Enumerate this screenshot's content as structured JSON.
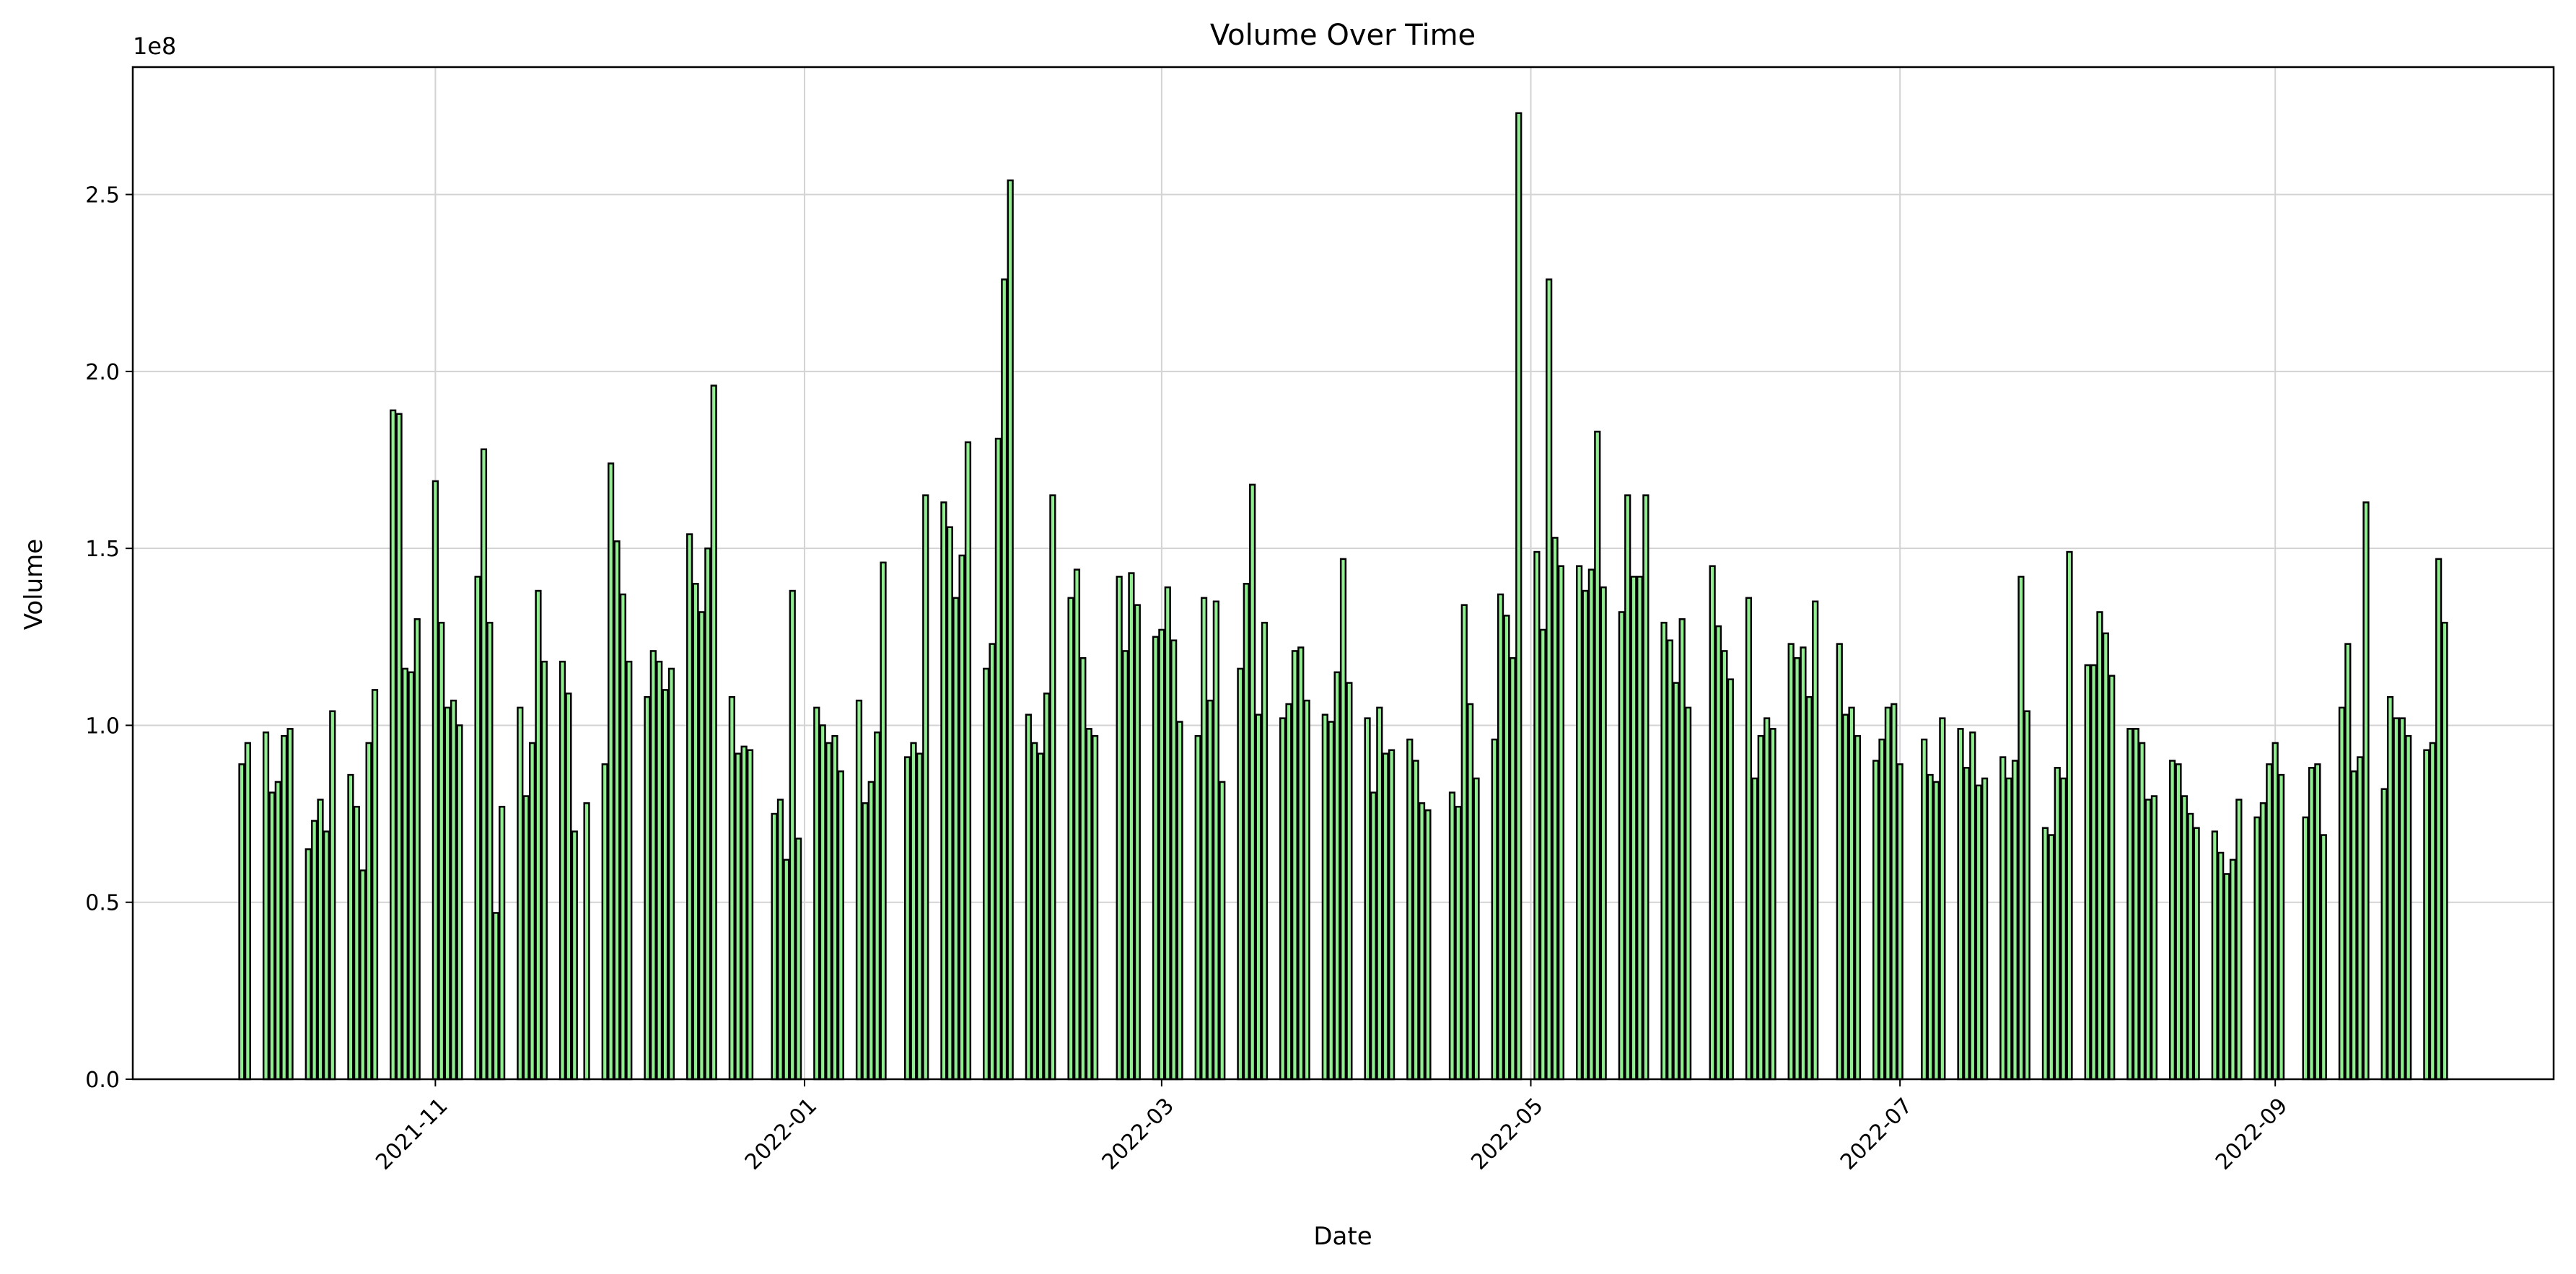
{
  "chart_data": {
    "type": "bar",
    "title": "Volume Over Time",
    "x_label": "Date",
    "y_label": "Volume",
    "y_offset_label": "1e8",
    "color": "#90ee90",
    "edge_color": "#000000",
    "grid": true,
    "xlim": [
      "2021-09-12",
      "2022-10-17"
    ],
    "xticks": [
      {
        "value": "2021-11-01",
        "label": "2021-11"
      },
      {
        "value": "2022-01-01",
        "label": "2022-01"
      },
      {
        "value": "2022-03-01",
        "label": "2022-03"
      },
      {
        "value": "2022-05-01",
        "label": "2022-05"
      },
      {
        "value": "2022-07-01",
        "label": "2022-07"
      },
      {
        "value": "2022-09-01",
        "label": "2022-09"
      }
    ],
    "ylim": [
      0,
      2.86
    ],
    "yticks": [
      {
        "value": 0,
        "label": "0.0"
      },
      0.5,
      {
        "value": 1,
        "label": "1.0"
      },
      1.5,
      {
        "value": 2,
        "label": "2.0"
      },
      2.5
    ],
    "x": [
      "2021-09-30",
      "2021-10-01",
      "2021-10-04",
      "2021-10-05",
      "2021-10-06",
      "2021-10-07",
      "2021-10-08",
      "2021-10-11",
      "2021-10-12",
      "2021-10-13",
      "2021-10-14",
      "2021-10-15",
      "2021-10-18",
      "2021-10-19",
      "2021-10-20",
      "2021-10-21",
      "2021-10-22",
      "2021-10-25",
      "2021-10-26",
      "2021-10-27",
      "2021-10-28",
      "2021-10-29",
      "2021-11-01",
      "2021-11-02",
      "2021-11-03",
      "2021-11-04",
      "2021-11-05",
      "2021-11-08",
      "2021-11-09",
      "2021-11-10",
      "2021-11-11",
      "2021-11-12",
      "2021-11-15",
      "2021-11-16",
      "2021-11-17",
      "2021-11-18",
      "2021-11-19",
      "2021-11-22",
      "2021-11-23",
      "2021-11-24",
      "2021-11-26",
      "2021-11-29",
      "2021-11-30",
      "2021-12-01",
      "2021-12-02",
      "2021-12-03",
      "2021-12-06",
      "2021-12-07",
      "2021-12-08",
      "2021-12-09",
      "2021-12-10",
      "2021-12-13",
      "2021-12-14",
      "2021-12-15",
      "2021-12-16",
      "2021-12-17",
      "2021-12-20",
      "2021-12-21",
      "2021-12-22",
      "2021-12-23",
      "2021-12-27",
      "2021-12-28",
      "2021-12-29",
      "2021-12-30",
      "2021-12-31",
      "2022-01-03",
      "2022-01-04",
      "2022-01-05",
      "2022-01-06",
      "2022-01-07",
      "2022-01-10",
      "2022-01-11",
      "2022-01-12",
      "2022-01-13",
      "2022-01-14",
      "2022-01-18",
      "2022-01-19",
      "2022-01-20",
      "2022-01-21",
      "2022-01-24",
      "2022-01-25",
      "2022-01-26",
      "2022-01-27",
      "2022-01-28",
      "2022-01-31",
      "2022-02-01",
      "2022-02-02",
      "2022-02-03",
      "2022-02-04",
      "2022-02-07",
      "2022-02-08",
      "2022-02-09",
      "2022-02-10",
      "2022-02-11",
      "2022-02-14",
      "2022-02-15",
      "2022-02-16",
      "2022-02-17",
      "2022-02-18",
      "2022-02-22",
      "2022-02-23",
      "2022-02-24",
      "2022-02-25",
      "2022-02-28",
      "2022-03-01",
      "2022-03-02",
      "2022-03-03",
      "2022-03-04",
      "2022-03-07",
      "2022-03-08",
      "2022-03-09",
      "2022-03-10",
      "2022-03-11",
      "2022-03-14",
      "2022-03-15",
      "2022-03-16",
      "2022-03-17",
      "2022-03-18",
      "2022-03-21",
      "2022-03-22",
      "2022-03-23",
      "2022-03-24",
      "2022-03-25",
      "2022-03-28",
      "2022-03-29",
      "2022-03-30",
      "2022-03-31",
      "2022-04-01",
      "2022-04-04",
      "2022-04-05",
      "2022-04-06",
      "2022-04-07",
      "2022-04-08",
      "2022-04-11",
      "2022-04-12",
      "2022-04-13",
      "2022-04-14",
      "2022-04-18",
      "2022-04-19",
      "2022-04-20",
      "2022-04-21",
      "2022-04-22",
      "2022-04-25",
      "2022-04-26",
      "2022-04-27",
      "2022-04-28",
      "2022-04-29",
      "2022-05-02",
      "2022-05-03",
      "2022-05-04",
      "2022-05-05",
      "2022-05-06",
      "2022-05-09",
      "2022-05-10",
      "2022-05-11",
      "2022-05-12",
      "2022-05-13",
      "2022-05-16",
      "2022-05-17",
      "2022-05-18",
      "2022-05-19",
      "2022-05-20",
      "2022-05-23",
      "2022-05-24",
      "2022-05-25",
      "2022-05-26",
      "2022-05-27",
      "2022-05-31",
      "2022-06-01",
      "2022-06-02",
      "2022-06-03",
      "2022-06-06",
      "2022-06-07",
      "2022-06-08",
      "2022-06-09",
      "2022-06-10",
      "2022-06-13",
      "2022-06-14",
      "2022-06-15",
      "2022-06-16",
      "2022-06-17",
      "2022-06-21",
      "2022-06-22",
      "2022-06-23",
      "2022-06-24",
      "2022-06-27",
      "2022-06-28",
      "2022-06-29",
      "2022-06-30",
      "2022-07-01",
      "2022-07-05",
      "2022-07-06",
      "2022-07-07",
      "2022-07-08",
      "2022-07-11",
      "2022-07-12",
      "2022-07-13",
      "2022-07-14",
      "2022-07-15",
      "2022-07-18",
      "2022-07-19",
      "2022-07-20",
      "2022-07-21",
      "2022-07-22",
      "2022-07-25",
      "2022-07-26",
      "2022-07-27",
      "2022-07-28",
      "2022-07-29",
      "2022-08-01",
      "2022-08-02",
      "2022-08-03",
      "2022-08-04",
      "2022-08-05",
      "2022-08-08",
      "2022-08-09",
      "2022-08-10",
      "2022-08-11",
      "2022-08-12",
      "2022-08-15",
      "2022-08-16",
      "2022-08-17",
      "2022-08-18",
      "2022-08-19",
      "2022-08-22",
      "2022-08-23",
      "2022-08-24",
      "2022-08-25",
      "2022-08-26",
      "2022-08-29",
      "2022-08-30",
      "2022-08-31",
      "2022-09-01",
      "2022-09-02",
      "2022-09-06",
      "2022-09-07",
      "2022-09-08",
      "2022-09-09",
      "2022-09-12",
      "2022-09-13",
      "2022-09-14",
      "2022-09-15",
      "2022-09-16",
      "2022-09-19",
      "2022-09-20",
      "2022-09-21",
      "2022-09-22",
      "2022-09-23",
      "2022-09-26",
      "2022-09-27",
      "2022-09-28",
      "2022-09-29"
    ],
    "values": [
      0.89,
      0.95,
      0.98,
      0.81,
      0.84,
      0.97,
      0.99,
      0.65,
      0.73,
      0.79,
      0.7,
      1.04,
      0.86,
      0.77,
      0.59,
      0.95,
      1.1,
      1.89,
      1.88,
      1.16,
      1.15,
      1.3,
      1.69,
      1.29,
      1.05,
      1.07,
      1.0,
      1.42,
      1.78,
      1.29,
      0.47,
      0.77,
      1.05,
      0.8,
      0.95,
      1.38,
      1.18,
      1.18,
      1.09,
      0.7,
      0.78,
      0.89,
      1.74,
      1.52,
      1.37,
      1.18,
      1.08,
      1.21,
      1.18,
      1.1,
      1.16,
      1.54,
      1.4,
      1.32,
      1.5,
      1.96,
      1.08,
      0.92,
      0.94,
      0.93,
      0.75,
      0.79,
      0.62,
      1.38,
      0.68,
      1.05,
      1.0,
      0.95,
      0.97,
      0.87,
      1.07,
      0.78,
      0.84,
      0.98,
      1.46,
      0.91,
      0.95,
      0.92,
      1.65,
      1.63,
      1.56,
      1.36,
      1.48,
      1.8,
      1.16,
      1.23,
      1.81,
      2.26,
      2.54,
      1.03,
      0.95,
      0.92,
      1.09,
      1.65,
      1.36,
      1.44,
      1.19,
      0.99,
      0.97,
      1.42,
      1.21,
      1.43,
      1.34,
      1.25,
      1.27,
      1.39,
      1.24,
      1.01,
      0.97,
      1.36,
      1.07,
      1.35,
      0.84,
      1.16,
      1.4,
      1.68,
      1.03,
      1.29,
      1.02,
      1.06,
      1.21,
      1.22,
      1.07,
      1.03,
      1.01,
      1.15,
      1.47,
      1.12,
      1.02,
      0.81,
      1.05,
      0.92,
      0.93,
      0.96,
      0.9,
      0.78,
      0.76,
      0.81,
      0.77,
      1.34,
      1.06,
      0.85,
      0.96,
      1.37,
      1.31,
      1.19,
      2.73,
      1.49,
      1.27,
      2.26,
      1.53,
      1.45,
      1.45,
      1.38,
      1.44,
      1.83,
      1.39,
      1.32,
      1.65,
      1.42,
      1.42,
      1.65,
      1.29,
      1.24,
      1.12,
      1.3,
      1.05,
      1.45,
      1.28,
      1.21,
      1.13,
      1.36,
      0.85,
      0.97,
      1.02,
      0.99,
      1.23,
      1.19,
      1.22,
      1.08,
      1.35,
      1.23,
      1.03,
      1.05,
      0.97,
      0.9,
      0.96,
      1.05,
      1.06,
      0.89,
      0.96,
      0.86,
      0.84,
      1.02,
      0.99,
      0.88,
      0.98,
      0.83,
      0.85,
      0.91,
      0.85,
      0.9,
      1.42,
      1.04,
      0.71,
      0.69,
      0.88,
      0.85,
      1.49,
      1.17,
      1.17,
      1.32,
      1.26,
      1.14,
      0.99,
      0.99,
      0.95,
      0.79,
      0.8,
      0.9,
      0.89,
      0.8,
      0.75,
      0.71,
      0.7,
      0.64,
      0.58,
      0.62,
      0.79,
      0.74,
      0.78,
      0.89,
      0.95,
      0.86,
      0.74,
      0.88,
      0.89,
      0.69,
      1.05,
      1.23,
      0.87,
      0.91,
      1.63,
      0.82,
      1.08,
      1.02,
      1.02,
      0.97,
      0.93,
      0.95,
      1.47,
      1.29
    ]
  }
}
